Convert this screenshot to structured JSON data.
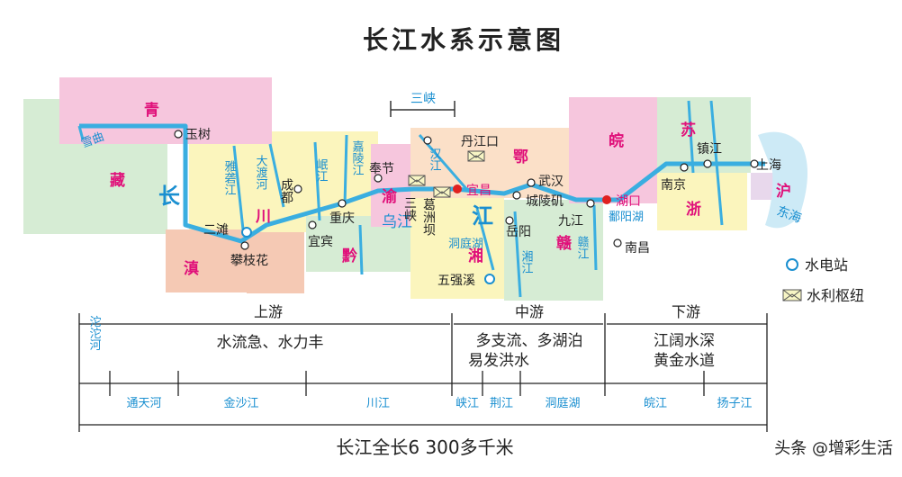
{
  "title": "长江水系示意图",
  "gorge_label": "三峡",
  "provinces": {
    "qing": "青",
    "zang": "藏",
    "chuan": "川",
    "dian": "滇",
    "yu": "渝",
    "qian": "黔",
    "e": "鄂",
    "xiang": "湘",
    "gan": "赣",
    "wan": "皖",
    "su": "苏",
    "zhe": "浙",
    "hu": "沪"
  },
  "cities": {
    "yushu": "玉树",
    "chengdu": "成都",
    "fengjie": "奉节",
    "danjiangkou": "丹江口",
    "wuhan": "武汉",
    "erlan": "二滩",
    "panzhihua": "攀枝花",
    "yibin": "宜宾",
    "chongqing": "重庆",
    "yichang": "宜昌",
    "chenglingji": "城陵矶",
    "yueyang": "岳阳",
    "jiujiang": "九江",
    "hukou": "湖口",
    "nanchang": "南昌",
    "nanjing": "南京",
    "zhenjiang": "镇江",
    "shanghai": "上海",
    "wuqiangxi": "五强溪"
  },
  "rivers": {
    "tongtian": "雪曲",
    "chang": "长",
    "jiang": "江",
    "yalong": "雅砻江",
    "dadu": "大渡河",
    "min": "岷江",
    "jialing": "嘉陵江",
    "wu": "乌江",
    "han": "汉江",
    "xiang": "湘江",
    "gan": "赣江",
    "dongting": "洞庭湖",
    "poyang": "鄱阳湖",
    "donghai": "东海"
  },
  "dams": {
    "sanxia": "三峡",
    "gezhouba": "葛洲坝"
  },
  "legend": {
    "hydro_station": "水电站",
    "water_hub": "水利枢纽"
  },
  "reaches": {
    "upper": {
      "label": "上游",
      "desc": "水流急、水力丰"
    },
    "middle": {
      "label": "中游",
      "desc_line1": "多支流、多湖泊",
      "desc_line2": "易发洪水"
    },
    "lower": {
      "label": "下游",
      "desc_line1": "江阔水深",
      "desc_line2": "黄金水道"
    }
  },
  "segments": {
    "tuotuo": "沱沱河",
    "tongtian": "通天河",
    "jinsha": "金沙江",
    "chuan": "川江",
    "xia": "峡江",
    "jing": "荆江",
    "dongtinghu": "洞庭湖",
    "wan": "皖江",
    "yangzi": "扬子江"
  },
  "total_length": "长江全长6 300多千米",
  "watermark": "头条 @增彩生活",
  "colors": {
    "river": "#3aaee0",
    "label_blue": "#1a8fd0",
    "province_label": "#e0107a",
    "green": "#d6ecd4",
    "pink": "#f6c6dd",
    "yellow": "#fbf5bd",
    "salmon": "#f5c9b4",
    "peach": "#fbe0c8",
    "lilac": "#e8d8ec"
  }
}
